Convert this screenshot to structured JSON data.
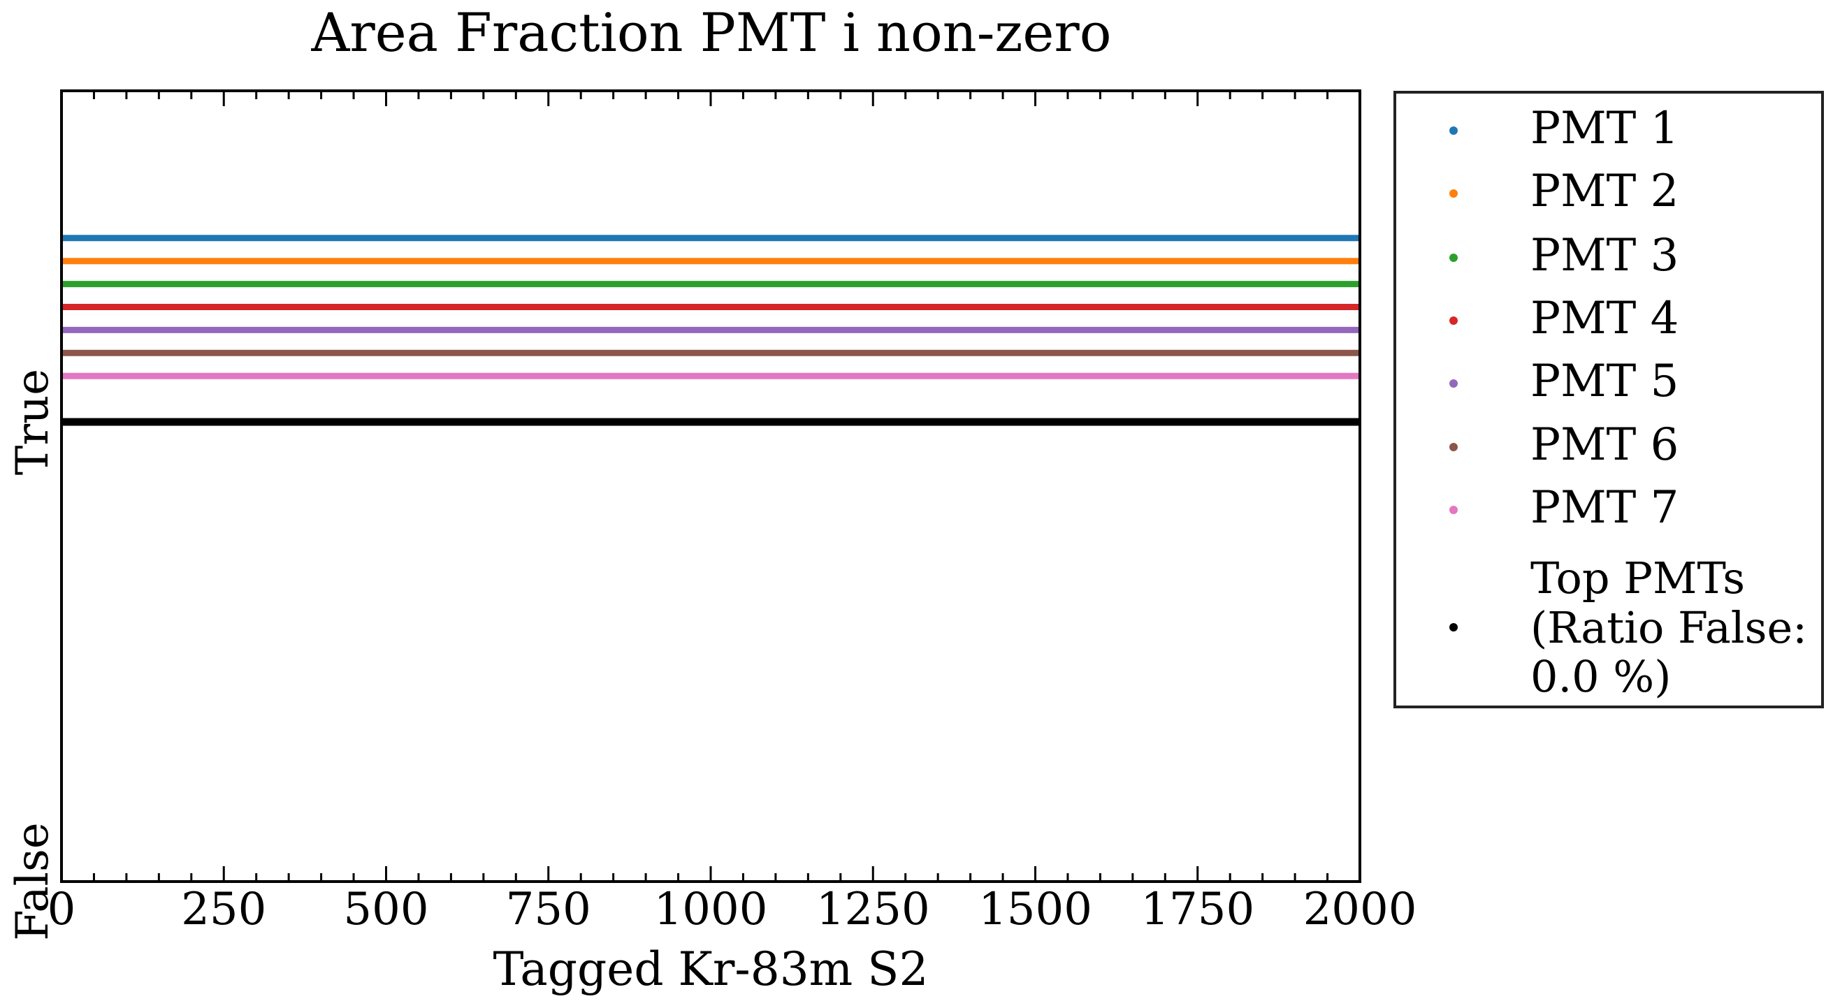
{
  "chart_data": {
    "type": "scatter",
    "title": "Area Fraction PMT i non-zero",
    "xlabel": "Tagged Kr-83m S2",
    "ylabel": "",
    "xlim": [
      0,
      2000
    ],
    "x_ticks": [
      0,
      250,
      500,
      750,
      1000,
      1250,
      1500,
      1750,
      2000
    ],
    "x_tick_labels": [
      "0",
      "250",
      "500",
      "750",
      "1000",
      "1250",
      "1500",
      "1750",
      "2000"
    ],
    "y_ticks": [
      0,
      1
    ],
    "y_tick_labels": [
      "False",
      "True"
    ],
    "x_range": [
      0,
      2000
    ],
    "grid": false,
    "legend_position": "outside-right",
    "series": [
      {
        "name": "PMT 1",
        "color": "#1f77b4",
        "y_position": 1.4,
        "value": true
      },
      {
        "name": "PMT 2",
        "color": "#ff7f0e",
        "y_position": 1.35,
        "value": true
      },
      {
        "name": "PMT 3",
        "color": "#2ca02c",
        "y_position": 1.3,
        "value": true
      },
      {
        "name": "PMT 4",
        "color": "#d62728",
        "y_position": 1.25,
        "value": true
      },
      {
        "name": "PMT 5",
        "color": "#9467bd",
        "y_position": 1.2,
        "value": true
      },
      {
        "name": "PMT 6",
        "color": "#8c564b",
        "y_position": 1.15,
        "value": true
      },
      {
        "name": "PMT 7",
        "color": "#e377c2",
        "y_position": 1.1,
        "value": true
      },
      {
        "name": "Top PMTs (Ratio False: 0.0 %)",
        "legend_lines": [
          "Top PMTs",
          "(Ratio False:",
          " 0.0 %)"
        ],
        "color": "#000000",
        "y_position": 1.0,
        "value": true
      }
    ]
  }
}
